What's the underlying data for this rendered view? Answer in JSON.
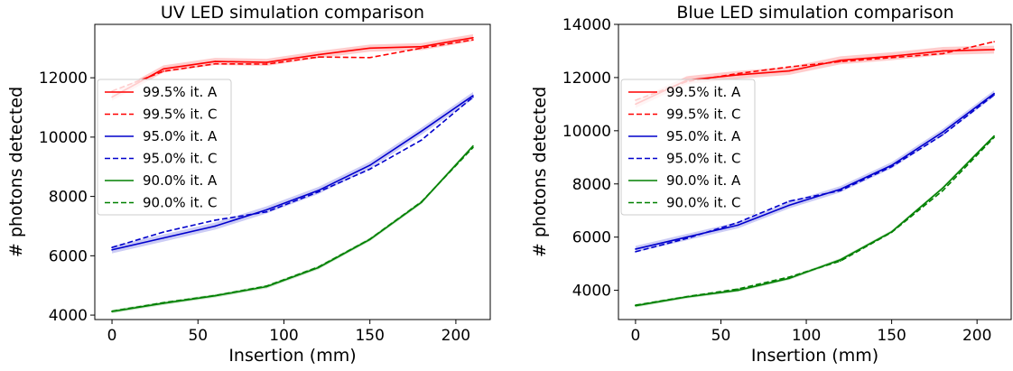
{
  "chart_data": [
    {
      "type": "line",
      "title": "UV LED simulation comparison",
      "xlabel": "Insertion (mm)",
      "ylabel": "# photons detected",
      "xlim": [
        -10,
        220
      ],
      "ylim": [
        3850,
        13800
      ],
      "xticks": [
        0,
        50,
        100,
        150,
        200
      ],
      "yticks": [
        4000,
        6000,
        8000,
        10000,
        12000
      ],
      "grid": false,
      "legend_position": "center-left",
      "x": [
        0,
        30,
        60,
        90,
        120,
        150,
        180,
        210
      ],
      "series": [
        {
          "name": "99.5% it. A",
          "color": "#ff0000",
          "dash": "solid",
          "band": 120,
          "values": [
            11350,
            12300,
            12550,
            12520,
            12780,
            13000,
            13050,
            13350
          ]
        },
        {
          "name": "99.5% it. C",
          "color": "#ff0000",
          "dash": "dashed",
          "band": 0,
          "values": [
            11550,
            12220,
            12470,
            12460,
            12700,
            12680,
            13000,
            13280
          ]
        },
        {
          "name": "95.0% it. A",
          "color": "#0000cc",
          "dash": "solid",
          "band": 120,
          "values": [
            6200,
            6600,
            7000,
            7550,
            8200,
            9050,
            10200,
            11400
          ]
        },
        {
          "name": "95.0% it. C",
          "color": "#0000cc",
          "dash": "dashed",
          "band": 0,
          "values": [
            6280,
            6800,
            7200,
            7480,
            8150,
            8920,
            9900,
            11350
          ]
        },
        {
          "name": "90.0% it. A",
          "color": "#008000",
          "dash": "solid",
          "band": 60,
          "values": [
            4120,
            4400,
            4650,
            4960,
            5600,
            6550,
            7800,
            9700
          ]
        },
        {
          "name": "90.0% it. C",
          "color": "#008000",
          "dash": "dashed",
          "band": 0,
          "values": [
            4130,
            4420,
            4660,
            4980,
            5620,
            6560,
            7820,
            9650
          ]
        }
      ]
    },
    {
      "type": "line",
      "title": "Blue LED simulation comparison",
      "xlabel": "Insertion (mm)",
      "ylabel": "# photons detected",
      "xlim": [
        -10,
        220
      ],
      "ylim": [
        2900,
        14000
      ],
      "xticks": [
        0,
        50,
        100,
        150,
        200
      ],
      "yticks": [
        4000,
        6000,
        8000,
        10000,
        12000,
        14000
      ],
      "grid": false,
      "legend_position": "center-left",
      "x": [
        0,
        30,
        60,
        90,
        120,
        150,
        180,
        210
      ],
      "series": [
        {
          "name": "99.5% it. A",
          "color": "#ff0000",
          "dash": "solid",
          "band": 150,
          "values": [
            11000,
            11900,
            12100,
            12250,
            12650,
            12800,
            13000,
            13050
          ]
        },
        {
          "name": "99.5% it. C",
          "color": "#ff0000",
          "dash": "dashed",
          "band": 0,
          "values": [
            11150,
            11850,
            12150,
            12400,
            12600,
            12750,
            12900,
            13350
          ]
        },
        {
          "name": "95.0% it. A",
          "color": "#0000cc",
          "dash": "solid",
          "band": 120,
          "values": [
            5550,
            6000,
            6450,
            7200,
            7800,
            8700,
            9950,
            11400
          ]
        },
        {
          "name": "95.0% it. C",
          "color": "#0000cc",
          "dash": "dashed",
          "band": 0,
          "values": [
            5450,
            5950,
            6550,
            7350,
            7750,
            8650,
            9850,
            11350
          ]
        },
        {
          "name": "90.0% it. A",
          "color": "#008000",
          "dash": "solid",
          "band": 60,
          "values": [
            3420,
            3750,
            4000,
            4450,
            5150,
            6200,
            7850,
            9800
          ]
        },
        {
          "name": "90.0% it. C",
          "color": "#008000",
          "dash": "dashed",
          "band": 0,
          "values": [
            3440,
            3760,
            4050,
            4500,
            5100,
            6180,
            7750,
            9750
          ]
        }
      ]
    }
  ]
}
